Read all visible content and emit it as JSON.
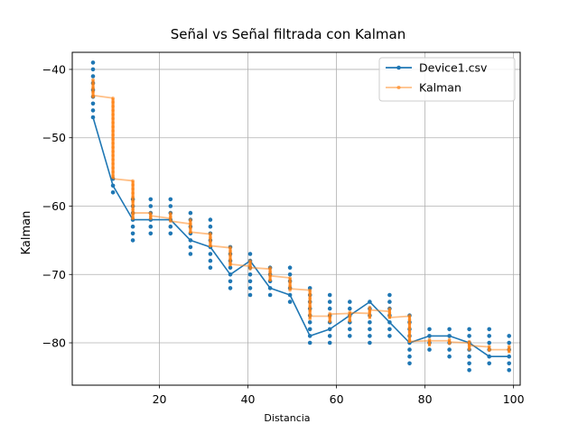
{
  "chart_data": {
    "type": "line",
    "title": "Señal vs Señal filtrada con Kalman",
    "xlabel": "Distancia",
    "ylabel": "Kalman",
    "xlim": [
      0.3,
      101.5
    ],
    "ylim": [
      -86.2,
      -37.5
    ],
    "xticks": [
      20,
      40,
      60,
      80,
      100
    ],
    "yticks": [
      -40,
      -50,
      -60,
      -70,
      -80
    ],
    "grid": true,
    "legend_position": "top-right",
    "colors": {
      "series1": "#1f77b4",
      "series2": "#ff7f0e"
    },
    "x_positions": [
      5,
      9.5,
      14,
      18,
      22.5,
      27,
      31.5,
      36,
      40.5,
      45,
      49.5,
      54,
      58.5,
      63,
      67.5,
      72,
      76.5,
      81,
      85.5,
      90,
      94.5,
      99
    ],
    "series": [
      {
        "name": "Device1.csv",
        "line_values": [
          -47,
          -57,
          -62,
          -62,
          -62,
          -65,
          -66,
          -70,
          -68,
          -72,
          -73,
          -79,
          -78,
          -76,
          -74,
          -77,
          -80,
          -79,
          -79,
          -80,
          -82,
          -82
        ],
        "scatter_spread": [
          [
            -39,
            -47
          ],
          [
            -56,
            -58
          ],
          [
            -59,
            -65
          ],
          [
            -59,
            -64
          ],
          [
            -59,
            -64
          ],
          [
            -61,
            -67
          ],
          [
            -62,
            -69
          ],
          [
            -66,
            -72
          ],
          [
            -67,
            -73
          ],
          [
            -69,
            -73
          ],
          [
            -69,
            -74
          ],
          [
            -72,
            -80
          ],
          [
            -73,
            -80
          ],
          [
            -74,
            -79
          ],
          [
            -74,
            -80
          ],
          [
            -73,
            -79
          ],
          [
            -76,
            -83
          ],
          [
            -78,
            -81
          ],
          [
            -78,
            -82
          ],
          [
            -78,
            -84
          ],
          [
            -78,
            -83
          ],
          [
            -79,
            -84
          ]
        ]
      },
      {
        "name": "Kalman",
        "segments": [
          [
            5,
            -43.8,
            9.5,
            -44.2
          ],
          [
            9.5,
            -56.0,
            14,
            -56.3
          ],
          [
            14,
            -61.0,
            18,
            -61.0
          ],
          [
            18,
            -61.4,
            22.5,
            -61.8
          ],
          [
            22.5,
            -62.2,
            27,
            -62.6
          ],
          [
            27,
            -63.8,
            31.5,
            -64.1
          ],
          [
            31.5,
            -65.8,
            36,
            -66.1
          ],
          [
            36,
            -68.5,
            40.5,
            -68.8
          ],
          [
            40.5,
            -69.0,
            45,
            -69.2
          ],
          [
            45,
            -70.2,
            49.5,
            -70.5
          ],
          [
            49.5,
            -72.1,
            54,
            -72.3
          ],
          [
            54,
            -76.1,
            58.5,
            -76.1
          ],
          [
            58.5,
            -75.8,
            63,
            -75.7
          ],
          [
            63,
            -75.6,
            67.5,
            -75.7
          ],
          [
            67.5,
            -75.2,
            72,
            -75.4
          ],
          [
            72,
            -76.3,
            76.5,
            -76.1
          ],
          [
            76.5,
            -79.8,
            81,
            -79.7
          ],
          [
            81,
            -79.7,
            85.5,
            -79.7
          ],
          [
            85.5,
            -79.9,
            90,
            -80.0
          ],
          [
            90,
            -80.4,
            94.5,
            -80.6
          ],
          [
            94.5,
            -81.0,
            99,
            -81.0
          ]
        ],
        "vertical_runs": [
          [
            5,
            -41.5,
            -44.2
          ],
          [
            9.5,
            -44.2,
            -56.0
          ],
          [
            14,
            -56.3,
            -62.0
          ],
          [
            18,
            -61.0,
            -62.0
          ],
          [
            22.5,
            -61.0,
            -62.2
          ],
          [
            27,
            -62.0,
            -64.0
          ],
          [
            31.5,
            -64.0,
            -66.0
          ],
          [
            36,
            -66.0,
            -68.8
          ],
          [
            40.5,
            -68.0,
            -69.2
          ],
          [
            45,
            -69.0,
            -71.0
          ],
          [
            49.5,
            -70.5,
            -72.3
          ],
          [
            54,
            -72.3,
            -76.5
          ],
          [
            58.5,
            -75.7,
            -77.0
          ],
          [
            63,
            -75.5,
            -77.0
          ],
          [
            67.5,
            -74.8,
            -76.5
          ],
          [
            72,
            -75.0,
            -76.5
          ],
          [
            76.5,
            -76.0,
            -80.0
          ],
          [
            81,
            -79.5,
            -80.5
          ],
          [
            85.5,
            -79.5,
            -80.2
          ],
          [
            90,
            -79.8,
            -81.0
          ],
          [
            94.5,
            -80.5,
            -81.2
          ],
          [
            99,
            -80.5,
            -81.5
          ]
        ]
      }
    ]
  }
}
